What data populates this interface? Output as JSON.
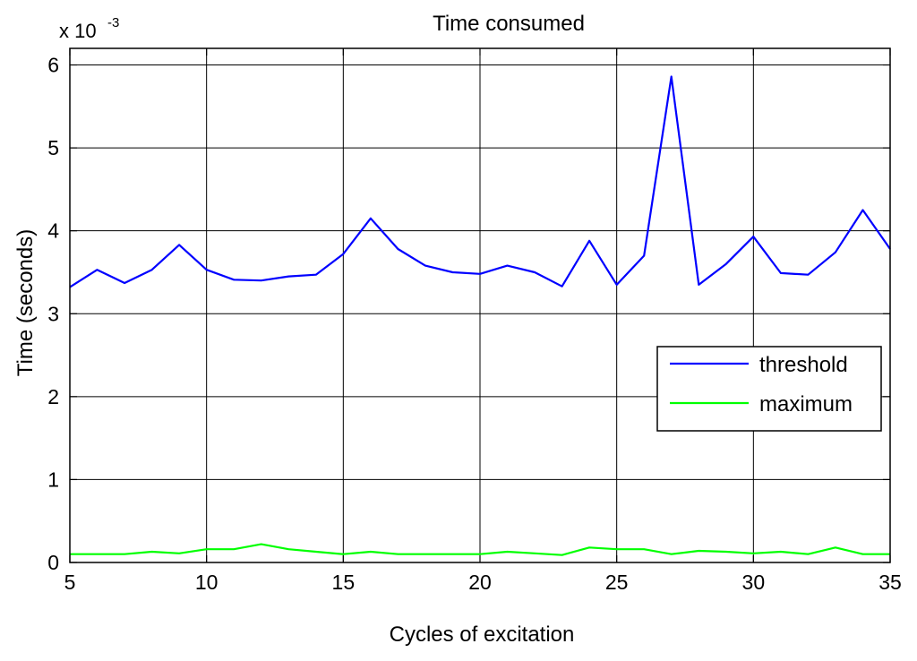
{
  "chart_data": {
    "type": "line",
    "title": "Time consumed",
    "xlabel": "Cycles of excitation",
    "ylabel": "Time (seconds)",
    "y_multiplier": {
      "base": "x 10",
      "exponent": "-3"
    },
    "xlim": [
      5,
      35
    ],
    "ylim": [
      0,
      6.2
    ],
    "xticks": [
      5,
      10,
      15,
      20,
      25,
      30,
      35
    ],
    "yticks": [
      0,
      1,
      2,
      3,
      4,
      5,
      6
    ],
    "grid": true,
    "legend_position": "right",
    "x": [
      5,
      6,
      7,
      8,
      9,
      10,
      11,
      12,
      13,
      14,
      15,
      16,
      17,
      18,
      19,
      20,
      21,
      22,
      23,
      24,
      25,
      26,
      27,
      28,
      29,
      30,
      31,
      32,
      33,
      34,
      35
    ],
    "series": [
      {
        "name": "threshold",
        "color": "#0000ff",
        "values": [
          3.32,
          3.53,
          3.37,
          3.53,
          3.83,
          3.53,
          3.41,
          3.4,
          3.45,
          3.47,
          3.72,
          4.15,
          3.78,
          3.58,
          3.5,
          3.48,
          3.58,
          3.5,
          3.33,
          3.88,
          3.35,
          3.7,
          5.86,
          3.35,
          3.6,
          3.93,
          3.49,
          3.47,
          3.74,
          4.25,
          3.78
        ]
      },
      {
        "name": "maximum",
        "color": "#00ff00",
        "values": [
          0.1,
          0.1,
          0.1,
          0.13,
          0.11,
          0.16,
          0.16,
          0.22,
          0.16,
          0.13,
          0.1,
          0.13,
          0.1,
          0.1,
          0.1,
          0.1,
          0.13,
          0.11,
          0.09,
          0.18,
          0.16,
          0.16,
          0.1,
          0.14,
          0.13,
          0.11,
          0.13,
          0.1,
          0.18,
          0.1,
          0.1
        ]
      }
    ]
  }
}
